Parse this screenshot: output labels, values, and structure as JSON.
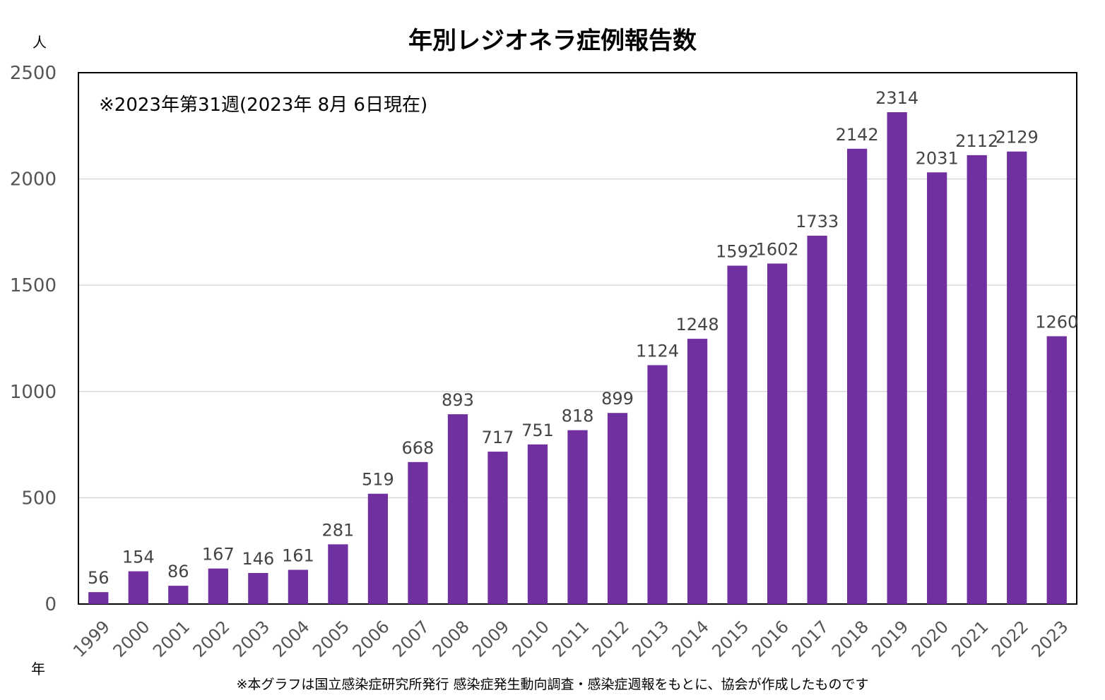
{
  "y_unit": "人",
  "x_unit": "年",
  "note": "※2023年第31週(2023年 8月 6日現在)",
  "footnote": "※本グラフは国立感染症研究所発行 感染症発生動向調査・感染症週報をもとに、協会が作成したものです",
  "chart_data": {
    "type": "bar",
    "title": "年別レジオネラ症例報告数",
    "categories": [
      "1999",
      "2000",
      "2001",
      "2002",
      "2003",
      "2004",
      "2005",
      "2006",
      "2007",
      "2008",
      "2009",
      "2010",
      "2011",
      "2012",
      "2013",
      "2014",
      "2015",
      "2016",
      "2017",
      "2018",
      "2019",
      "2020",
      "2021",
      "2022",
      "2023"
    ],
    "values": [
      56,
      154,
      86,
      167,
      146,
      161,
      281,
      519,
      668,
      893,
      717,
      751,
      818,
      899,
      1124,
      1248,
      1592,
      1602,
      1733,
      2142,
      2314,
      2031,
      2112,
      2129,
      1260
    ],
    "ylim": [
      0,
      2500
    ],
    "yticks": [
      0,
      500,
      1000,
      1500,
      2000,
      2500
    ],
    "grid": true,
    "bar_color": "#7030a0"
  }
}
